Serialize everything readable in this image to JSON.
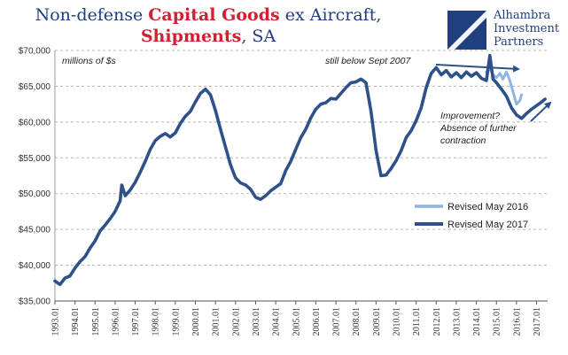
{
  "title": {
    "line1_prefix": "Non-defense ",
    "line1_highlight": "Capital Goods",
    "line1_suffix": " ex Aircraft,",
    "line2_highlight": "Shipments",
    "line2_suffix": ", SA"
  },
  "logo": {
    "icon": "alhambra-logo-icon",
    "line1": "Alhambra",
    "line2": "Investment",
    "line3": "Partners"
  },
  "colors": {
    "revised_2016": "#8fb4e0",
    "revised_2017": "#2e5189",
    "title_blue": "#1f3f7f",
    "title_red": "#d1202f",
    "arrow": "#2e5189",
    "grid": "#b5b5b5"
  },
  "chart_data": {
    "type": "line",
    "title": "Non-defense Capital Goods ex Aircraft, Shipments, SA",
    "ylabel": "millions of $s",
    "xlabel": "",
    "ylim": [
      35000,
      70000
    ],
    "xlim": [
      1993.0,
      2017.55
    ],
    "y_ticks": [
      35000,
      40000,
      45000,
      50000,
      55000,
      60000,
      65000,
      70000
    ],
    "y_tick_labels": [
      "$35,000",
      "$40,000",
      "$45,000",
      "$50,000",
      "$55,000",
      "$60,000",
      "$65,000",
      "$70,000"
    ],
    "x_tick_labels": [
      "1993.01",
      "1994.01",
      "1995.01",
      "1996.01",
      "1997.01",
      "1998.01",
      "1999.01",
      "2000.01",
      "2001.01",
      "2002.01",
      "2003.01",
      "2004.01",
      "2005.01",
      "2006.01",
      "2007.01",
      "2008.01",
      "2009.01",
      "2010.01",
      "2011.01",
      "2012.01",
      "2013.01",
      "2014.01",
      "2015.01",
      "2016.01",
      "2017.01"
    ],
    "grid": true,
    "legend_position": "bottom-right",
    "series": [
      {
        "name": "Revised May 2016",
        "points": [
          [
            2014.5,
            67000
          ],
          [
            2014.67,
            67500
          ],
          [
            2014.83,
            66600
          ],
          [
            2015.0,
            66200
          ],
          [
            2015.17,
            66800
          ],
          [
            2015.33,
            66000
          ],
          [
            2015.5,
            67000
          ],
          [
            2015.67,
            65800
          ],
          [
            2015.83,
            64200
          ],
          [
            2016.0,
            62500
          ],
          [
            2016.17,
            63000
          ],
          [
            2016.25,
            63800
          ]
        ]
      },
      {
        "name": "Revised May 2017",
        "points": [
          [
            1993.0,
            37800
          ],
          [
            1993.25,
            37300
          ],
          [
            1993.5,
            38200
          ],
          [
            1993.75,
            38500
          ],
          [
            1994.0,
            39600
          ],
          [
            1994.25,
            40500
          ],
          [
            1994.5,
            41200
          ],
          [
            1994.75,
            42400
          ],
          [
            1995.0,
            43400
          ],
          [
            1995.25,
            44800
          ],
          [
            1995.5,
            45600
          ],
          [
            1995.75,
            46500
          ],
          [
            1996.0,
            47500
          ],
          [
            1996.25,
            49000
          ],
          [
            1996.33,
            51200
          ],
          [
            1996.5,
            49700
          ],
          [
            1996.75,
            50500
          ],
          [
            1997.0,
            51600
          ],
          [
            1997.25,
            53000
          ],
          [
            1997.5,
            54500
          ],
          [
            1997.75,
            56200
          ],
          [
            1998.0,
            57400
          ],
          [
            1998.25,
            58000
          ],
          [
            1998.5,
            58400
          ],
          [
            1998.75,
            57900
          ],
          [
            1999.0,
            58500
          ],
          [
            1999.25,
            59800
          ],
          [
            1999.5,
            60800
          ],
          [
            1999.75,
            61500
          ],
          [
            2000.0,
            62800
          ],
          [
            2000.25,
            64000
          ],
          [
            2000.5,
            64600
          ],
          [
            2000.75,
            63800
          ],
          [
            2001.0,
            61600
          ],
          [
            2001.25,
            59000
          ],
          [
            2001.5,
            56500
          ],
          [
            2001.75,
            54000
          ],
          [
            2002.0,
            52200
          ],
          [
            2002.25,
            51500
          ],
          [
            2002.5,
            51200
          ],
          [
            2002.75,
            50600
          ],
          [
            2003.0,
            49500
          ],
          [
            2003.25,
            49200
          ],
          [
            2003.5,
            49700
          ],
          [
            2003.75,
            50400
          ],
          [
            2004.0,
            50900
          ],
          [
            2004.25,
            51400
          ],
          [
            2004.5,
            53200
          ],
          [
            2004.75,
            54500
          ],
          [
            2005.0,
            56200
          ],
          [
            2005.25,
            57800
          ],
          [
            2005.5,
            59000
          ],
          [
            2005.75,
            60600
          ],
          [
            2006.0,
            61800
          ],
          [
            2006.25,
            62500
          ],
          [
            2006.5,
            62700
          ],
          [
            2006.75,
            63300
          ],
          [
            2007.0,
            63200
          ],
          [
            2007.25,
            64000
          ],
          [
            2007.5,
            64800
          ],
          [
            2007.75,
            65500
          ],
          [
            2008.0,
            65600
          ],
          [
            2008.25,
            66000
          ],
          [
            2008.5,
            65500
          ],
          [
            2008.75,
            61500
          ],
          [
            2009.0,
            56000
          ],
          [
            2009.25,
            52500
          ],
          [
            2009.5,
            52600
          ],
          [
            2009.75,
            53500
          ],
          [
            2010.0,
            54600
          ],
          [
            2010.25,
            56000
          ],
          [
            2010.5,
            57800
          ],
          [
            2010.75,
            58800
          ],
          [
            2011.0,
            60200
          ],
          [
            2011.25,
            62000
          ],
          [
            2011.5,
            64800
          ],
          [
            2011.75,
            66800
          ],
          [
            2012.0,
            67600
          ],
          [
            2012.25,
            66600
          ],
          [
            2012.5,
            67200
          ],
          [
            2012.75,
            66300
          ],
          [
            2013.0,
            66900
          ],
          [
            2013.25,
            66200
          ],
          [
            2013.5,
            67000
          ],
          [
            2013.75,
            66400
          ],
          [
            2014.0,
            66900
          ],
          [
            2014.25,
            66100
          ],
          [
            2014.5,
            65800
          ],
          [
            2014.67,
            69300
          ],
          [
            2014.83,
            66000
          ],
          [
            2015.0,
            65500
          ],
          [
            2015.25,
            64600
          ],
          [
            2015.5,
            63600
          ],
          [
            2015.75,
            62000
          ],
          [
            2016.0,
            61000
          ],
          [
            2016.25,
            60500
          ],
          [
            2016.5,
            61200
          ],
          [
            2016.75,
            61800
          ],
          [
            2017.0,
            62300
          ],
          [
            2017.25,
            62800
          ],
          [
            2017.42,
            63200
          ]
        ]
      }
    ],
    "annotations": {
      "units": "millions of $s",
      "top": "still below Sept 2007",
      "right_line1": "Improvement?",
      "right_line2": "Absence of further",
      "right_line3": "contraction"
    }
  }
}
